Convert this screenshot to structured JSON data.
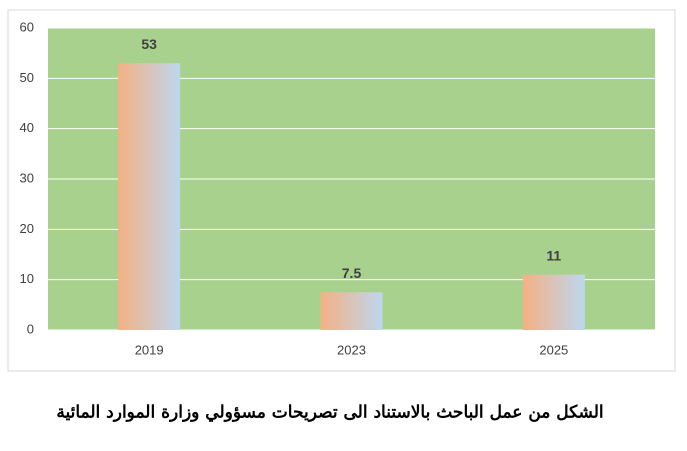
{
  "chart_data": {
    "type": "bar",
    "categories": [
      "2019",
      "2023",
      "2025"
    ],
    "values": [
      53,
      7.5,
      11
    ],
    "gradient": [
      "#f4b183",
      "#bdd7ee"
    ],
    "plot_background": "#a9d18e",
    "ylim": [
      0,
      60
    ],
    "yticks": [
      0,
      10,
      20,
      30,
      40,
      50,
      60
    ],
    "grid": true,
    "caption": "الشكل من عمل الباحث بالاستناد الى تصريحات مسؤولي وزارة الموارد المائية"
  }
}
